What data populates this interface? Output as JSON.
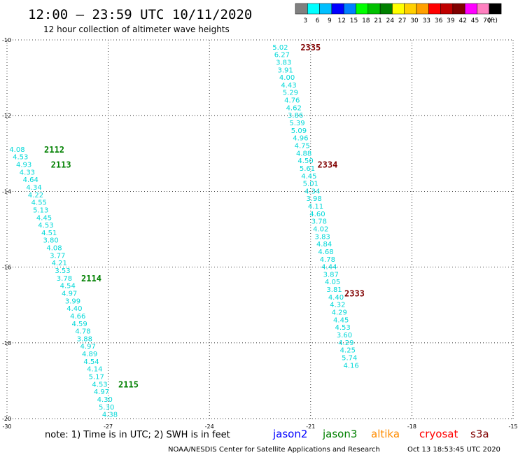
{
  "header": {
    "title": "12:00 – 23:59 UTC 10/11/2020",
    "subtitle": "12 hour collection of altimeter wave heights"
  },
  "colorbar": {
    "colors": [
      "#808080",
      "#00ffff",
      "#00bfff",
      "#0000ff",
      "#0080ff",
      "#00ff00",
      "#00c000",
      "#008000",
      "#ffff00",
      "#ffd000",
      "#ffa000",
      "#ff0000",
      "#c00000",
      "#800000",
      "#ff00ff",
      "#ff80c0",
      "#000000"
    ],
    "labels": [
      "3",
      "6",
      "9",
      "12",
      "15",
      "18",
      "21",
      "24",
      "27",
      "30",
      "33",
      "36",
      "39",
      "42",
      "45",
      "70",
      "(ft)"
    ]
  },
  "footer": {
    "note": "note: 1) Time is in UTC; 2) SWH is in feet",
    "credit": "NOAA/NESDIS Center for Satellite Applications and Research",
    "timestamp": "Oct 13 18:53:45 UTC 2020"
  },
  "legend": [
    {
      "name": "jason2",
      "color": "#0000ff"
    },
    {
      "name": "jason3",
      "color": "#008000"
    },
    {
      "name": "altika",
      "color": "#ff8c00"
    },
    {
      "name": "cryosat",
      "color": "#ff0000"
    },
    {
      "name": "s3a",
      "color": "#800000"
    }
  ],
  "chart_data": {
    "type": "scatter",
    "xlim": [
      -30,
      -15
    ],
    "ylim": [
      -20,
      -10
    ],
    "xticks": [
      -30,
      -27,
      -24,
      -21,
      -18,
      -15
    ],
    "yticks": [
      -10,
      -12,
      -14,
      -16,
      -18,
      -20
    ],
    "grid": true,
    "value_color": "#00d8d8",
    "track_labels": [
      {
        "label": "2112",
        "color": "#008000",
        "x": -28.9,
        "y": -12.9
      },
      {
        "label": "2113",
        "color": "#008000",
        "x": -28.7,
        "y": -13.3
      },
      {
        "label": "2114",
        "color": "#008000",
        "x": -27.8,
        "y": -16.3
      },
      {
        "label": "2115",
        "color": "#008000",
        "x": -26.7,
        "y": -19.1
      },
      {
        "label": "2335",
        "color": "#800000",
        "x": -21.3,
        "y": -10.2
      },
      {
        "label": "2334",
        "color": "#800000",
        "x": -20.8,
        "y": -13.3
      },
      {
        "label": "2333",
        "color": "#800000",
        "x": -20.0,
        "y": -16.7
      }
    ],
    "series": [
      {
        "values": [
          {
            "x": -29.7,
            "y": -12.9,
            "v": "4.08"
          },
          {
            "x": -29.6,
            "y": -13.1,
            "v": "4.53"
          },
          {
            "x": -29.5,
            "y": -13.3,
            "v": "4.93"
          },
          {
            "x": -29.4,
            "y": -13.5,
            "v": "4.33"
          },
          {
            "x": -29.3,
            "y": -13.7,
            "v": "4.64"
          },
          {
            "x": -29.2,
            "y": -13.9,
            "v": "4.34"
          },
          {
            "x": -29.15,
            "y": -14.1,
            "v": "4.22"
          },
          {
            "x": -29.05,
            "y": -14.3,
            "v": "4.55"
          },
          {
            "x": -29.0,
            "y": -14.5,
            "v": "5.13"
          },
          {
            "x": -28.9,
            "y": -14.7,
            "v": "4.45"
          },
          {
            "x": -28.85,
            "y": -14.9,
            "v": "4.53"
          },
          {
            "x": -28.75,
            "y": -15.1,
            "v": "4.51"
          },
          {
            "x": -28.7,
            "y": -15.3,
            "v": "3.80"
          },
          {
            "x": -28.6,
            "y": -15.5,
            "v": "4.08"
          },
          {
            "x": -28.5,
            "y": -15.7,
            "v": "3.77"
          },
          {
            "x": -28.45,
            "y": -15.9,
            "v": "4.21"
          },
          {
            "x": -28.35,
            "y": -16.1,
            "v": "3.53"
          },
          {
            "x": -28.3,
            "y": -16.3,
            "v": "3.78"
          },
          {
            "x": -28.2,
            "y": -16.5,
            "v": "4.54"
          },
          {
            "x": -28.15,
            "y": -16.7,
            "v": "4.97"
          },
          {
            "x": -28.05,
            "y": -16.9,
            "v": "3.99"
          },
          {
            "x": -28.0,
            "y": -17.1,
            "v": "4.40"
          },
          {
            "x": -27.9,
            "y": -17.3,
            "v": "4.66"
          },
          {
            "x": -27.85,
            "y": -17.5,
            "v": "4.59"
          },
          {
            "x": -27.75,
            "y": -17.7,
            "v": "4.78"
          },
          {
            "x": -27.7,
            "y": -17.9,
            "v": "3.88"
          },
          {
            "x": -27.6,
            "y": -18.1,
            "v": "4.97"
          },
          {
            "x": -27.55,
            "y": -18.3,
            "v": "4.89"
          },
          {
            "x": -27.5,
            "y": -18.5,
            "v": "4.54"
          },
          {
            "x": -27.4,
            "y": -18.7,
            "v": "4.14"
          },
          {
            "x": -27.35,
            "y": -18.9,
            "v": "5.17"
          },
          {
            "x": -27.25,
            "y": -19.1,
            "v": "4.53"
          },
          {
            "x": -27.2,
            "y": -19.3,
            "v": "4.97"
          },
          {
            "x": -27.1,
            "y": -19.5,
            "v": "4.30"
          },
          {
            "x": -27.05,
            "y": -19.7,
            "v": "5.30"
          },
          {
            "x": -26.95,
            "y": -19.9,
            "v": "4.38"
          }
        ]
      },
      {
        "values": [
          {
            "x": -21.9,
            "y": -10.2,
            "v": "5.02"
          },
          {
            "x": -21.85,
            "y": -10.4,
            "v": "6.27"
          },
          {
            "x": -21.8,
            "y": -10.6,
            "v": "3.83"
          },
          {
            "x": -21.75,
            "y": -10.8,
            "v": "3.91"
          },
          {
            "x": -21.7,
            "y": -11.0,
            "v": "4.00"
          },
          {
            "x": -21.65,
            "y": -11.2,
            "v": "4.43"
          },
          {
            "x": -21.6,
            "y": -11.4,
            "v": "5.29"
          },
          {
            "x": -21.55,
            "y": -11.6,
            "v": "4.76"
          },
          {
            "x": -21.5,
            "y": -11.8,
            "v": "4.62"
          },
          {
            "x": -21.45,
            "y": -12.0,
            "v": "3.86"
          },
          {
            "x": -21.4,
            "y": -12.2,
            "v": "5.39"
          },
          {
            "x": -21.35,
            "y": -12.4,
            "v": "5.09"
          },
          {
            "x": -21.3,
            "y": -12.6,
            "v": "4.96"
          },
          {
            "x": -21.25,
            "y": -12.8,
            "v": "4.75"
          },
          {
            "x": -21.2,
            "y": -13.0,
            "v": "4.88"
          },
          {
            "x": -21.15,
            "y": -13.2,
            "v": "4.50"
          },
          {
            "x": -21.1,
            "y": -13.4,
            "v": "5.61"
          },
          {
            "x": -21.05,
            "y": -13.6,
            "v": "4.45"
          },
          {
            "x": -21.0,
            "y": -13.8,
            "v": "5.01"
          },
          {
            "x": -20.95,
            "y": -14.0,
            "v": "4.34"
          },
          {
            "x": -20.9,
            "y": -14.2,
            "v": "3.98"
          },
          {
            "x": -20.85,
            "y": -14.4,
            "v": "4.11"
          },
          {
            "x": -20.8,
            "y": -14.6,
            "v": "4.60"
          },
          {
            "x": -20.75,
            "y": -14.8,
            "v": "3.78"
          },
          {
            "x": -20.7,
            "y": -15.0,
            "v": "4.02"
          },
          {
            "x": -20.65,
            "y": -15.2,
            "v": "3.83"
          },
          {
            "x": -20.6,
            "y": -15.4,
            "v": "4.84"
          },
          {
            "x": -20.55,
            "y": -15.6,
            "v": "4.68"
          },
          {
            "x": -20.5,
            "y": -15.8,
            "v": "4.78"
          },
          {
            "x": -20.45,
            "y": -16.0,
            "v": "4.44"
          },
          {
            "x": -20.4,
            "y": -16.2,
            "v": "3.87"
          },
          {
            "x": -20.35,
            "y": -16.4,
            "v": "4.05"
          },
          {
            "x": -20.3,
            "y": -16.6,
            "v": "3.81"
          },
          {
            "x": -20.25,
            "y": -16.8,
            "v": "4.40"
          },
          {
            "x": -20.2,
            "y": -17.0,
            "v": "4.32"
          },
          {
            "x": -20.15,
            "y": -17.2,
            "v": "4.29"
          },
          {
            "x": -20.1,
            "y": -17.4,
            "v": "4.45"
          },
          {
            "x": -20.05,
            "y": -17.6,
            "v": "4.53"
          },
          {
            "x": -20.0,
            "y": -17.8,
            "v": "3.60"
          },
          {
            "x": -19.95,
            "y": -18.0,
            "v": "4.29"
          },
          {
            "x": -19.9,
            "y": -18.2,
            "v": "4.25"
          },
          {
            "x": -19.85,
            "y": -18.4,
            "v": "5.74"
          },
          {
            "x": -19.8,
            "y": -18.6,
            "v": "4.16"
          }
        ]
      }
    ]
  }
}
